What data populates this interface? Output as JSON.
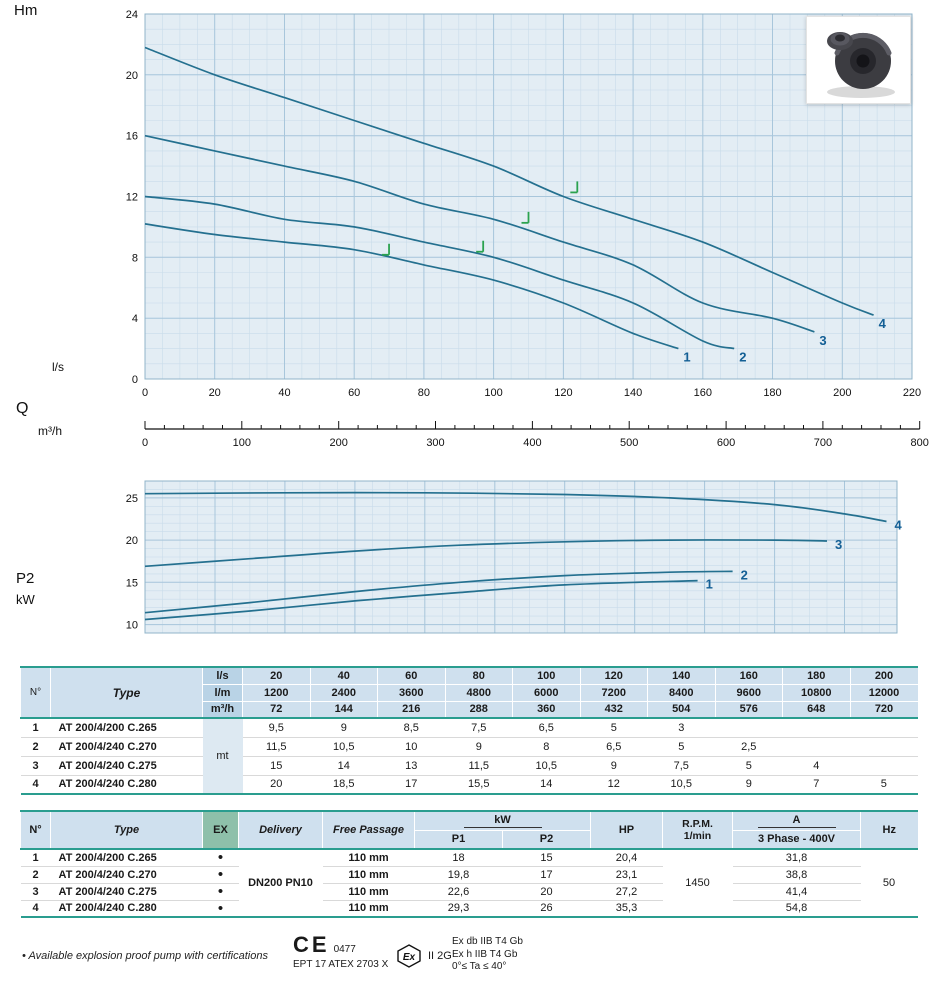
{
  "axes": {
    "hm": "Hm",
    "ls": "l/s",
    "q": "Q",
    "m3h": "m³/h",
    "p2": "P2",
    "kw": "kW"
  },
  "chart_data": [
    {
      "type": "line",
      "ylabel": "Hm",
      "xlabel": "l/s",
      "xlabel_secondary": "m³/h",
      "xlim": [
        0,
        220
      ],
      "ylim": [
        0,
        24
      ],
      "x_ticks": [
        0,
        20,
        40,
        60,
        80,
        100,
        120,
        140,
        160,
        180,
        200,
        220
      ],
      "y_ticks": [
        0,
        4,
        8,
        12,
        16,
        20,
        24
      ],
      "x_minor_step": 5,
      "y_minor_step": 1,
      "grid": "on",
      "series": [
        {
          "name": "1",
          "x": [
            0,
            20,
            40,
            60,
            80,
            100,
            120,
            140,
            153
          ],
          "y": [
            10.2,
            9.5,
            9,
            8.5,
            7.5,
            6.5,
            5,
            3,
            2
          ]
        },
        {
          "name": "2",
          "x": [
            0,
            20,
            40,
            60,
            80,
            100,
            120,
            140,
            160,
            169
          ],
          "y": [
            12,
            11.5,
            10.5,
            10,
            9,
            8,
            6.5,
            5,
            2.5,
            2
          ]
        },
        {
          "name": "3",
          "x": [
            0,
            20,
            40,
            60,
            80,
            100,
            120,
            140,
            160,
            180,
            192
          ],
          "y": [
            16,
            15,
            14,
            13,
            11.5,
            10.5,
            9,
            7.5,
            5,
            4,
            3.1
          ]
        },
        {
          "name": "4",
          "x": [
            0,
            20,
            40,
            60,
            80,
            100,
            120,
            140,
            160,
            180,
            200,
            209
          ],
          "y": [
            21.8,
            20,
            18.5,
            17,
            15.5,
            14,
            12,
            10.5,
            9,
            7,
            5,
            4.2
          ]
        }
      ],
      "duty_markers": [
        {
          "x": 70,
          "y": 8.3
        },
        {
          "x": 97,
          "y": 8.5
        },
        {
          "x": 110,
          "y": 10.4
        },
        {
          "x": 124,
          "y": 12.4
        }
      ]
    },
    {
      "type": "line",
      "ylabel": "P2 kW",
      "xlim": [
        0,
        215
      ],
      "ylim": [
        9,
        27
      ],
      "x_ticks": [
        0,
        20,
        40,
        60,
        80,
        100,
        120,
        140,
        160,
        180,
        200
      ],
      "y_ticks": [
        10,
        15,
        20,
        25
      ],
      "x_minor_step": 5,
      "y_minor_step": 1,
      "grid": "on",
      "series": [
        {
          "name": "1",
          "x": [
            0,
            30,
            60,
            90,
            120,
            158
          ],
          "y": [
            10.6,
            11.6,
            12.8,
            13.8,
            14.7,
            15.2
          ]
        },
        {
          "name": "2",
          "x": [
            0,
            30,
            60,
            90,
            120,
            150,
            168
          ],
          "y": [
            11.4,
            12.6,
            13.9,
            15,
            15.8,
            16.2,
            16.3
          ]
        },
        {
          "name": "3",
          "x": [
            0,
            30,
            60,
            90,
            120,
            150,
            180,
            195
          ],
          "y": [
            16.9,
            17.8,
            18.7,
            19.4,
            19.8,
            20,
            20,
            19.9
          ]
        },
        {
          "name": "4",
          "x": [
            0,
            40,
            80,
            120,
            150,
            180,
            200,
            212
          ],
          "y": [
            25.5,
            25.6,
            25.6,
            25.4,
            25,
            24.2,
            23.1,
            22.2
          ]
        }
      ]
    }
  ],
  "ruler": {
    "max": 800,
    "major_step": 100,
    "minor_step": 20,
    "ticks": [
      0,
      100,
      200,
      300,
      400,
      500,
      600,
      700,
      800
    ]
  },
  "table1": {
    "col_headers": {
      "no": "N°",
      "type": "Type"
    },
    "unit_rows": [
      {
        "unit": "l/s",
        "values": [
          "20",
          "40",
          "60",
          "80",
          "100",
          "120",
          "140",
          "160",
          "180",
          "200"
        ]
      },
      {
        "unit": "l/m",
        "values": [
          "1200",
          "2400",
          "3600",
          "4800",
          "6000",
          "7200",
          "8400",
          "9600",
          "10800",
          "12000"
        ]
      },
      {
        "unit": "m³/h",
        "values": [
          "72",
          "144",
          "216",
          "288",
          "360",
          "432",
          "504",
          "576",
          "648",
          "720"
        ]
      }
    ],
    "row_unit": "mt",
    "rows": [
      {
        "no": "1",
        "type": "AT 200/4/200 C.265",
        "values": [
          "9,5",
          "9",
          "8,5",
          "7,5",
          "6,5",
          "5",
          "3",
          "",
          "",
          ""
        ]
      },
      {
        "no": "2",
        "type": "AT 200/4/240 C.270",
        "values": [
          "11,5",
          "10,5",
          "10",
          "9",
          "8",
          "6,5",
          "5",
          "2,5",
          "",
          ""
        ]
      },
      {
        "no": "3",
        "type": "AT 200/4/240 C.275",
        "values": [
          "15",
          "14",
          "13",
          "11,5",
          "10,5",
          "9",
          "7,5",
          "5",
          "4",
          ""
        ]
      },
      {
        "no": "4",
        "type": "AT 200/4/240 C.280",
        "values": [
          "20",
          "18,5",
          "17",
          "15,5",
          "14",
          "12",
          "10,5",
          "9",
          "7",
          "5"
        ]
      }
    ]
  },
  "table2": {
    "headers": {
      "no": "N°",
      "type": "Type",
      "ex": "EX",
      "delivery": "Delivery",
      "free_passage": "Free Passage",
      "kw": "kW",
      "p1": "P1",
      "p2": "P2",
      "hp": "HP",
      "rpm_line1": "R.P.M.",
      "rpm_line2": "1/min",
      "a": "A",
      "a_sub": "3 Phase - 400V",
      "hz": "Hz"
    },
    "shared": {
      "delivery": "DN200 PN10",
      "rpm": "1450",
      "hz": "50"
    },
    "rows": [
      {
        "no": "1",
        "type": "AT 200/4/200 C.265",
        "ex": "•",
        "free_passage": "110 mm",
        "p1": "18",
        "p2": "15",
        "hp": "20,4",
        "a": "31,8"
      },
      {
        "no": "2",
        "type": "AT 200/4/240 C.270",
        "ex": "•",
        "free_passage": "110 mm",
        "p1": "19,8",
        "p2": "17",
        "hp": "23,1",
        "a": "38,8"
      },
      {
        "no": "3",
        "type": "AT 200/4/240 C.275",
        "ex": "•",
        "free_passage": "110 mm",
        "p1": "22,6",
        "p2": "20",
        "hp": "27,2",
        "a": "41,4"
      },
      {
        "no": "4",
        "type": "AT 200/4/240 C.280",
        "ex": "•",
        "free_passage": "110 mm",
        "p1": "29,3",
        "p2": "26",
        "hp": "35,3",
        "a": "54,8"
      }
    ]
  },
  "footer": {
    "note": "• Available explosion proof pump with certifications",
    "ce_mark": "CE",
    "ce_number": "0477",
    "atex_code": "EPT 17 ATEX 2703 X",
    "ex_mark": "Ex",
    "ex_group": "II 2G",
    "cert_lines": [
      "Ex db IIB T4 Gb",
      "Ex h IIB T4 Gb",
      "0°≤ Ta ≤ 40°"
    ]
  }
}
